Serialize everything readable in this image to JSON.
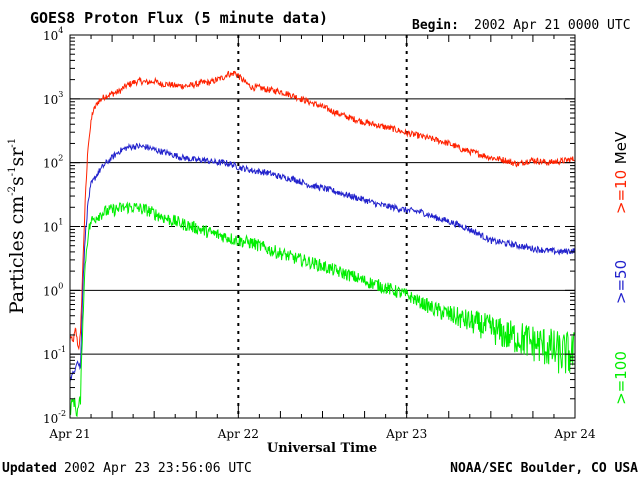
{
  "header": {
    "title": "GOES8 Proton Flux (5 minute data)",
    "begin_label": "Begin:",
    "begin_value": "2002 Apr 21 0000 UTC"
  },
  "footer": {
    "updated_label": "Updated",
    "updated_value": "2002 Apr 23 23:56:06 UTC",
    "credit": "NOAA/SEC Boulder, CO USA"
  },
  "chart_data": {
    "type": "line",
    "title": "GOES8 Proton Flux (5 minute data)",
    "xlabel": "Universal Time",
    "ylabel": "Particles cm-2s-1sr-1",
    "ylabel_parts": {
      "main": "Particles cm",
      "exp1": "-2",
      "mid1": "s",
      "exp2": "-1",
      "mid2": "sr",
      "exp3": "-1"
    },
    "yscale": "log",
    "ylim": [
      0.01,
      10000
    ],
    "xlim": [
      0,
      72
    ],
    "x_unit": "hours since 2002 Apr 21 0000 UTC",
    "x_ticks": [
      {
        "x": 0,
        "label": "Apr 21"
      },
      {
        "x": 24,
        "label": "Apr 22"
      },
      {
        "x": 48,
        "label": "Apr 23"
      },
      {
        "x": 72,
        "label": "Apr 24"
      }
    ],
    "y_ticks": [
      {
        "value": 0.01,
        "base": "10",
        "exp": "-2"
      },
      {
        "value": 0.1,
        "base": "10",
        "exp": "-1"
      },
      {
        "value": 1,
        "base": "10",
        "exp": "0"
      },
      {
        "value": 10,
        "base": "10",
        "exp": "1"
      },
      {
        "value": 100,
        "base": "10",
        "exp": "2"
      },
      {
        "value": 1000,
        "base": "10",
        "exp": "3"
      },
      {
        "value": 10000,
        "base": "10",
        "exp": "4"
      }
    ],
    "horizontal_lines": [
      {
        "value": 1000,
        "style": "solid"
      },
      {
        "value": 100,
        "style": "solid"
      },
      {
        "value": 10,
        "style": "dashed"
      },
      {
        "value": 1,
        "style": "solid"
      },
      {
        "value": 0.1,
        "style": "solid"
      }
    ],
    "day_separators": [
      24,
      48
    ],
    "legend": [
      {
        "label": "MeV",
        "color": "#000000"
      },
      {
        "label": ">=10",
        "color": "#ff2200"
      },
      {
        "label": ">=50",
        "color": "#2222cc"
      },
      {
        "label": ">=100",
        "color": "#00ee00"
      }
    ],
    "series": [
      {
        "name": ">=10 MeV",
        "color": "#ff2200",
        "noise": 0.05,
        "points": [
          [
            0,
            0.2
          ],
          [
            0.4,
            0.15
          ],
          [
            0.8,
            0.25
          ],
          [
            1.2,
            0.12
          ],
          [
            1.5,
            0.2
          ],
          [
            1.8,
            2
          ],
          [
            2.2,
            30
          ],
          [
            2.6,
            200
          ],
          [
            3.2,
            600
          ],
          [
            4,
            900
          ],
          [
            5,
            1100
          ],
          [
            6,
            1200
          ],
          [
            7,
            1300
          ],
          [
            8,
            1600
          ],
          [
            9,
            1800
          ],
          [
            10,
            1900
          ],
          [
            11,
            1800
          ],
          [
            12,
            1900
          ],
          [
            13,
            1700
          ],
          [
            14,
            1700
          ],
          [
            15,
            1600
          ],
          [
            16,
            1600
          ],
          [
            17,
            1600
          ],
          [
            18,
            1700
          ],
          [
            19,
            1800
          ],
          [
            20,
            1800
          ],
          [
            21,
            2000
          ],
          [
            22,
            2200
          ],
          [
            22.5,
            2500
          ],
          [
            23,
            2400
          ],
          [
            23.5,
            2600
          ],
          [
            24,
            2300
          ],
          [
            25,
            1800
          ],
          [
            26,
            1500
          ],
          [
            27,
            1500
          ],
          [
            28,
            1400
          ],
          [
            30,
            1300
          ],
          [
            32,
            1100
          ],
          [
            34,
            900
          ],
          [
            36,
            750
          ],
          [
            38,
            600
          ],
          [
            40,
            500
          ],
          [
            42,
            430
          ],
          [
            44,
            380
          ],
          [
            46,
            340
          ],
          [
            48,
            290
          ],
          [
            50,
            260
          ],
          [
            52,
            230
          ],
          [
            54,
            200
          ],
          [
            56,
            160
          ],
          [
            58,
            140
          ],
          [
            60,
            120
          ],
          [
            62,
            110
          ],
          [
            63,
            100
          ],
          [
            64,
            95
          ],
          [
            65,
            105
          ],
          [
            66,
            110
          ],
          [
            68,
            100
          ],
          [
            70,
            105
          ],
          [
            72,
            115
          ]
        ]
      },
      {
        "name": ">=50 MeV",
        "color": "#2222cc",
        "noise": 0.05,
        "points": [
          [
            0,
            0.04
          ],
          [
            0.5,
            0.05
          ],
          [
            1,
            0.08
          ],
          [
            1.5,
            0.06
          ],
          [
            1.8,
            1
          ],
          [
            2.2,
            8
          ],
          [
            2.6,
            25
          ],
          [
            3,
            45
          ],
          [
            4,
            70
          ],
          [
            5,
            95
          ],
          [
            6,
            120
          ],
          [
            7,
            150
          ],
          [
            8,
            170
          ],
          [
            9,
            180
          ],
          [
            10,
            180
          ],
          [
            11,
            175
          ],
          [
            12,
            160
          ],
          [
            13,
            150
          ],
          [
            14,
            140
          ],
          [
            15,
            130
          ],
          [
            16,
            120
          ],
          [
            17,
            115
          ],
          [
            18,
            110
          ],
          [
            19,
            110
          ],
          [
            20,
            105
          ],
          [
            21,
            100
          ],
          [
            22,
            100
          ],
          [
            23,
            95
          ],
          [
            24,
            85
          ],
          [
            26,
            75
          ],
          [
            28,
            70
          ],
          [
            30,
            60
          ],
          [
            32,
            55
          ],
          [
            34,
            45
          ],
          [
            36,
            40
          ],
          [
            38,
            35
          ],
          [
            40,
            30
          ],
          [
            42,
            26
          ],
          [
            44,
            22
          ],
          [
            46,
            20
          ],
          [
            48,
            18
          ],
          [
            50,
            17
          ],
          [
            52,
            14
          ],
          [
            54,
            12
          ],
          [
            56,
            10
          ],
          [
            58,
            8
          ],
          [
            60,
            6
          ],
          [
            62,
            5.5
          ],
          [
            64,
            5
          ],
          [
            66,
            4.5
          ],
          [
            68,
            4.2
          ],
          [
            70,
            4
          ],
          [
            72,
            4.2
          ]
        ]
      },
      {
        "name": ">=100 MeV",
        "color": "#00ee00",
        "noise": 0.1,
        "points": [
          [
            0,
            0.013
          ],
          [
            0.5,
            0.02
          ],
          [
            1,
            0.012
          ],
          [
            1.5,
            0.02
          ],
          [
            1.8,
            0.3
          ],
          [
            2.2,
            3
          ],
          [
            2.6,
            8
          ],
          [
            3,
            12
          ],
          [
            4,
            15
          ],
          [
            5,
            17
          ],
          [
            6,
            18
          ],
          [
            7,
            19
          ],
          [
            8,
            20
          ],
          [
            9,
            20
          ],
          [
            10,
            19
          ],
          [
            11,
            18
          ],
          [
            12,
            16
          ],
          [
            14,
            13
          ],
          [
            16,
            11
          ],
          [
            18,
            9.5
          ],
          [
            20,
            8
          ],
          [
            22,
            7
          ],
          [
            24,
            6
          ],
          [
            26,
            5.5
          ],
          [
            28,
            4.5
          ],
          [
            30,
            3.8
          ],
          [
            32,
            3.2
          ],
          [
            34,
            2.8
          ],
          [
            36,
            2.4
          ],
          [
            38,
            2
          ],
          [
            40,
            1.7
          ],
          [
            42,
            1.4
          ],
          [
            44,
            1.2
          ],
          [
            46,
            1
          ],
          [
            48,
            0.85
          ],
          [
            50,
            0.65
          ],
          [
            52,
            0.5
          ],
          [
            54,
            0.42
          ],
          [
            56,
            0.35
          ],
          [
            58,
            0.3
          ],
          [
            60,
            0.25
          ],
          [
            62,
            0.2
          ],
          [
            64,
            0.18
          ],
          [
            66,
            0.15
          ],
          [
            68,
            0.13
          ],
          [
            70,
            0.1
          ],
          [
            72,
            0.1
          ]
        ]
      }
    ]
  }
}
